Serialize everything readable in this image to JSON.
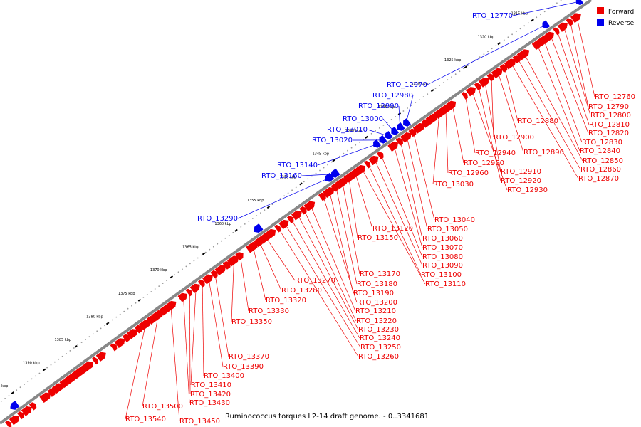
{
  "caption": "Ruminococcus torques L2-14 draft genome. - 0..3341681",
  "colors": {
    "forward": "#ee0000",
    "reverse": "#0000ee",
    "backbone": "#888888",
    "dots": "#999999"
  },
  "legend": [
    {
      "label": "Forward",
      "color": "#ee0000"
    },
    {
      "label": "Reverse",
      "color": "#0000ee"
    }
  ],
  "ticks": [
    "1310 kbp",
    "1315 kbp",
    "1320 kbp",
    "1325 kbp",
    "1330 kbp",
    "1335 kbp",
    "1340 kbp",
    "1345 kbp",
    "1350 kbp",
    "1355 kbp",
    "1360 kbp",
    "1365 kbp",
    "1370 kbp",
    "1375 kbp",
    "1380 kbp",
    "1385 kbp",
    "1390 kbp",
    "1395 kbp"
  ],
  "reverse_genes": [
    "RTO_12770",
    "RTO_12970",
    "RTO_12980",
    "RTO_12990",
    "RTO_13000",
    "RTO_13010",
    "RTO_13020",
    "RTO_13140",
    "RTO_13160",
    "RTO_13290"
  ],
  "forward_genes": [
    "RTO_12760",
    "RTO_12790",
    "RTO_12800",
    "RTO_12810",
    "RTO_12820",
    "RTO_12830",
    "RTO_12840",
    "RTO_12850",
    "RTO_12860",
    "RTO_12870",
    "RTO_12880",
    "RTO_12890",
    "RTO_12900",
    "RTO_12910",
    "RTO_12920",
    "RTO_12930",
    "RTO_12940",
    "RTO_12950",
    "RTO_12960",
    "RTO_13030",
    "RTO_13040",
    "RTO_13050",
    "RTO_13060",
    "RTO_13070",
    "RTO_13080",
    "RTO_13090",
    "RTO_13100",
    "RTO_13110",
    "RTO_13120",
    "RTO_13150",
    "RTO_13170",
    "RTO_13180",
    "RTO_13190",
    "RTO_13200",
    "RTO_13210",
    "RTO_13220",
    "RTO_13230",
    "RTO_13240",
    "RTO_13250",
    "RTO_13260",
    "RTO_13270",
    "RTO_13280",
    "RTO_13320",
    "RTO_13330",
    "RTO_13350",
    "RTO_13370",
    "RTO_13390",
    "RTO_13400",
    "RTO_13410",
    "RTO_13420",
    "RTO_13430",
    "RTO_13450",
    "RTO_13500",
    "RTO_13540"
  ]
}
